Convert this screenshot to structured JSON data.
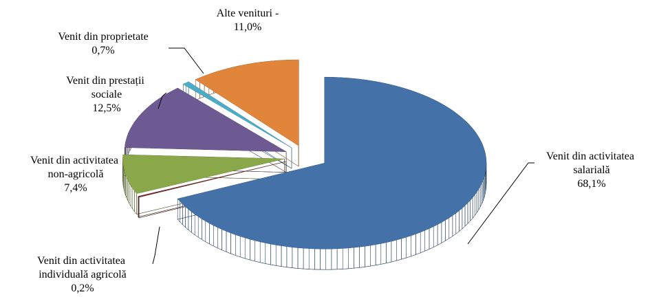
{
  "chart_data": {
    "type": "pie3d",
    "categories": [
      "Venit din activitatea salarială",
      "Venit din activitatea individuală agricolă",
      "Venit din activitatea non-agricolă",
      "Venit din prestații sociale",
      "Venit din proprietate",
      "Alte venituri -"
    ],
    "values": [
      68.1,
      0.2,
      7.4,
      12.5,
      0.7,
      11.0
    ],
    "value_labels": [
      "68,1%",
      "0,2%",
      "7,4%",
      "12,5%",
      "0,7%",
      "11,0%"
    ],
    "colors": [
      "#4472a8",
      "#7b2f2a",
      "#8aa84a",
      "#6e5a93",
      "#4aacc6",
      "#e0853a"
    ]
  }
}
